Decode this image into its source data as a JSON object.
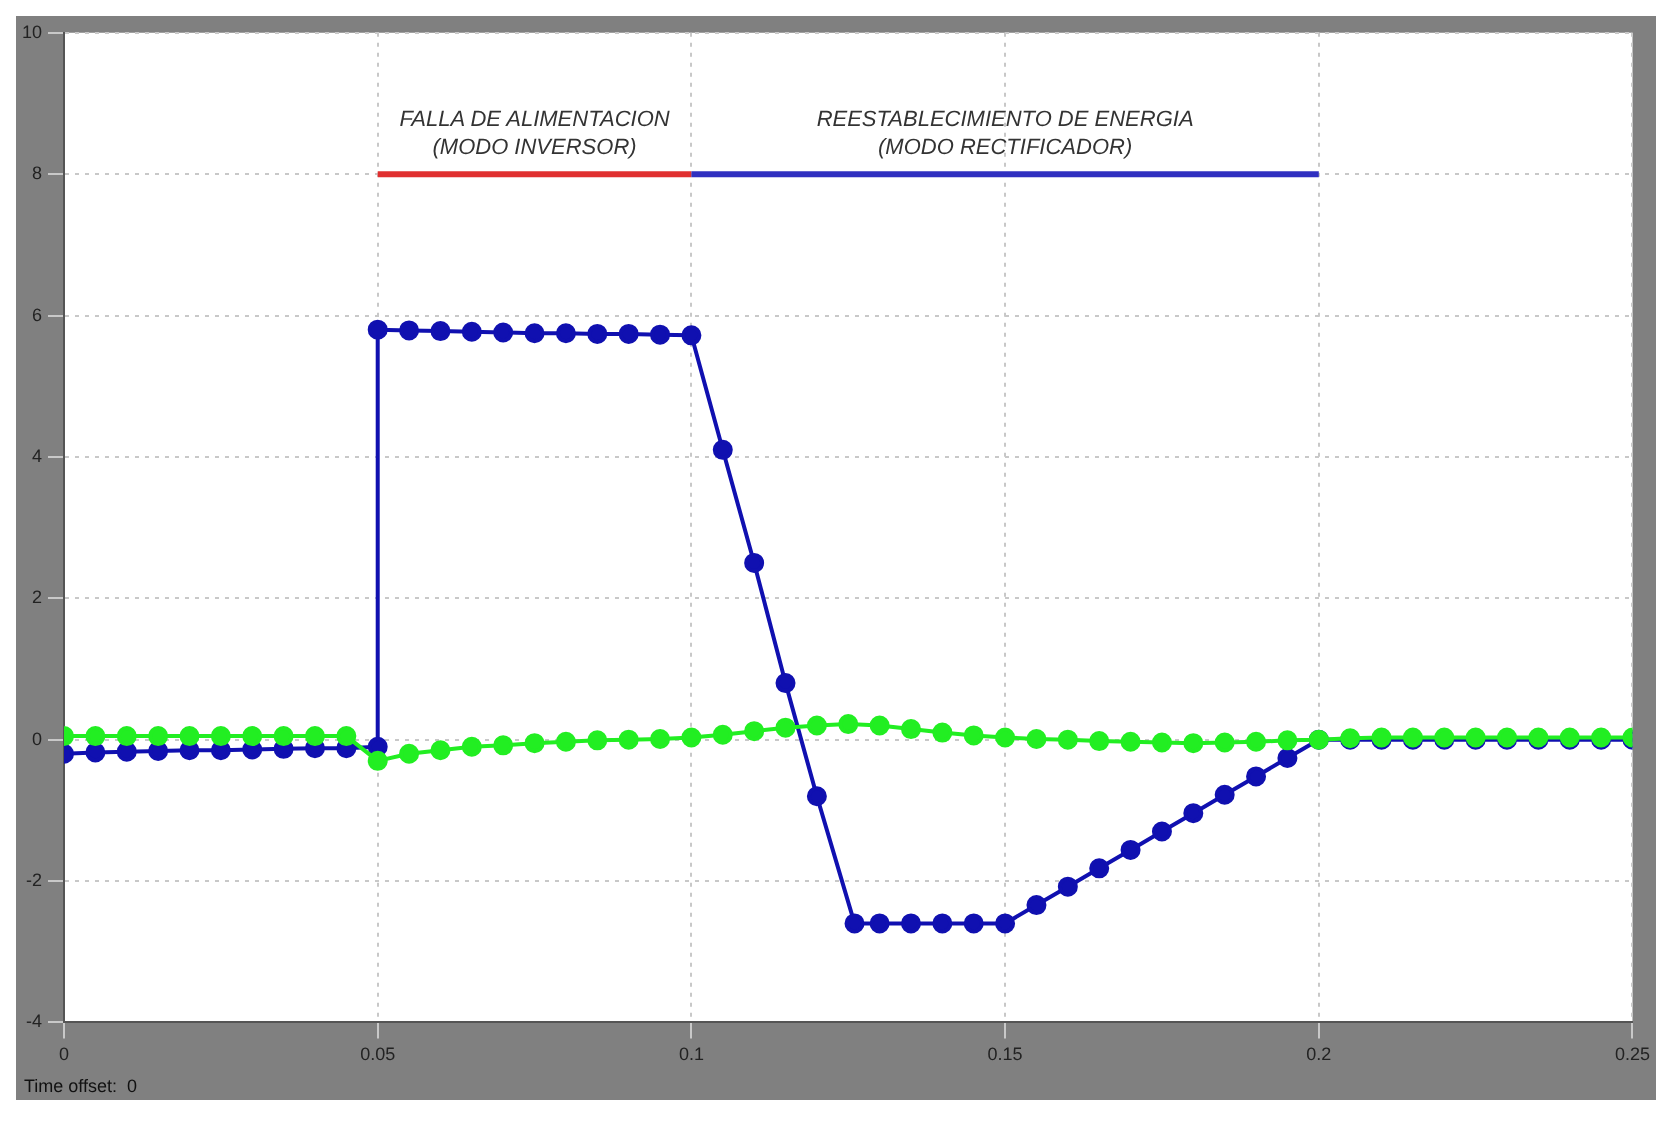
{
  "chart_data": {
    "type": "line",
    "xlim": [
      0,
      0.25
    ],
    "xticks": [
      0,
      0.05,
      0.1,
      0.15,
      0.2,
      0.25
    ],
    "ylim": [
      -4,
      10
    ],
    "yticks": [
      -4,
      -2,
      0,
      2,
      4,
      6,
      8,
      10
    ],
    "grid": true,
    "legend": false,
    "marker": "circle",
    "series": [
      {
        "color": "#1010b0",
        "x": [
          0,
          0.005,
          0.01,
          0.015,
          0.02,
          0.025,
          0.03,
          0.035,
          0.04,
          0.045,
          0.05,
          0.05,
          0.055,
          0.06,
          0.065,
          0.07,
          0.075,
          0.08,
          0.085,
          0.09,
          0.095,
          0.1,
          0.105,
          0.11,
          0.115,
          0.12,
          0.126,
          0.13,
          0.135,
          0.14,
          0.145,
          0.15,
          0.155,
          0.16,
          0.165,
          0.17,
          0.175,
          0.18,
          0.185,
          0.19,
          0.195,
          0.2,
          0.205,
          0.21,
          0.215,
          0.22,
          0.225,
          0.23,
          0.235,
          0.24,
          0.245,
          0.25
        ],
        "values": [
          -0.2,
          -0.18,
          -0.17,
          -0.16,
          -0.15,
          -0.15,
          -0.14,
          -0.13,
          -0.12,
          -0.12,
          -0.1,
          5.8,
          5.79,
          5.78,
          5.77,
          5.76,
          5.75,
          5.75,
          5.74,
          5.74,
          5.73,
          5.72,
          4.1,
          2.5,
          0.8,
          -0.8,
          -2.6,
          -2.6,
          -2.6,
          -2.6,
          -2.6,
          -2.6,
          -2.34,
          -2.08,
          -1.82,
          -1.56,
          -1.3,
          -1.04,
          -0.78,
          -0.52,
          -0.26,
          0,
          0,
          0,
          0,
          0,
          0,
          0,
          0,
          0,
          0,
          0
        ]
      },
      {
        "color": "#22ee22",
        "x": [
          0,
          0.005,
          0.01,
          0.015,
          0.02,
          0.025,
          0.03,
          0.035,
          0.04,
          0.045,
          0.05,
          0.055,
          0.06,
          0.065,
          0.07,
          0.075,
          0.08,
          0.085,
          0.09,
          0.095,
          0.1,
          0.105,
          0.11,
          0.115,
          0.12,
          0.125,
          0.13,
          0.135,
          0.14,
          0.145,
          0.15,
          0.155,
          0.16,
          0.165,
          0.17,
          0.175,
          0.18,
          0.185,
          0.19,
          0.195,
          0.2,
          0.205,
          0.21,
          0.215,
          0.22,
          0.225,
          0.23,
          0.235,
          0.24,
          0.245,
          0.25
        ],
        "values": [
          0.05,
          0.05,
          0.05,
          0.05,
          0.05,
          0.05,
          0.05,
          0.05,
          0.05,
          0.05,
          -0.3,
          -0.2,
          -0.15,
          -0.1,
          -0.08,
          -0.05,
          -0.03,
          -0.01,
          0,
          0.01,
          0.03,
          0.07,
          0.12,
          0.17,
          0.2,
          0.22,
          0.2,
          0.15,
          0.1,
          0.06,
          0.03,
          0.01,
          0,
          -0.02,
          -0.03,
          -0.04,
          -0.05,
          -0.04,
          -0.03,
          -0.01,
          0,
          0.02,
          0.03,
          0.03,
          0.03,
          0.03,
          0.03,
          0.03,
          0.03,
          0.03,
          0.03
        ]
      },
      {
        "color": "#e03030",
        "marker": "none",
        "x": [
          0.05,
          0.1
        ],
        "values": [
          8,
          8
        ]
      },
      {
        "color": "#3030c0",
        "marker": "none",
        "x": [
          0.1,
          0.2
        ],
        "values": [
          8,
          8
        ]
      }
    ],
    "annotations": [
      {
        "text": "FALLA DE ALIMENTACION\n(MODO INVERSOR)",
        "x": 0.075,
        "y": 8
      },
      {
        "text": "REESTABLECIMIENTO DE ENERGIA\n(MODO RECTIFICADOR)",
        "x": 0.15,
        "y": 8
      },
      "Time offset:  0"
    ]
  }
}
